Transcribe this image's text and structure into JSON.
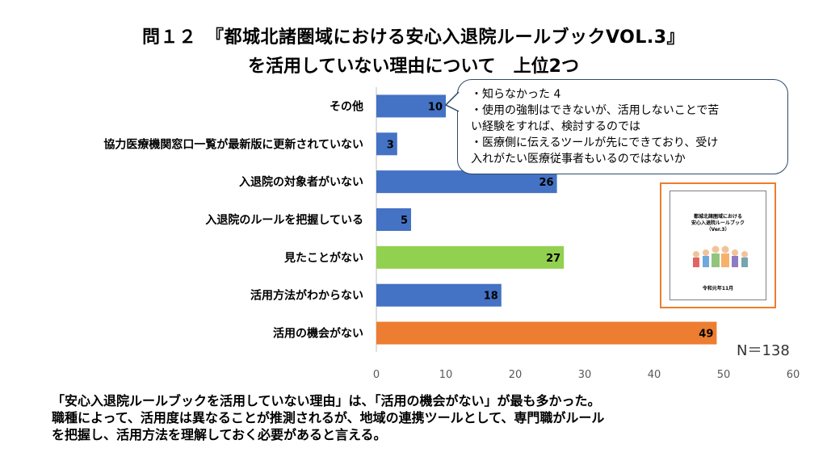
{
  "title": {
    "line1": "問１２　『都城北諸圏域における安心入退院ルールブックVOL.3』",
    "line2": "を活用していない理由について　上位2つ"
  },
  "chart_data": {
    "type": "bar",
    "orientation": "horizontal",
    "categories": [
      "その他",
      "協力医療機関窓口一覧が最新版に更新されていない",
      "入退院の対象者がいない",
      "入退院のルールを把握している",
      "見たことがない",
      "活用方法がわからない",
      "活用の機会がない"
    ],
    "values": [
      10,
      3,
      26,
      5,
      27,
      18,
      49
    ],
    "colors": [
      "#4472c4",
      "#4472c4",
      "#4472c4",
      "#4472c4",
      "#92d050",
      "#4472c4",
      "#ed7d31"
    ],
    "xlim": [
      0,
      60
    ],
    "xticks": [
      "0",
      "10",
      "20",
      "30",
      "40",
      "50",
      "60"
    ],
    "grid": false,
    "legend": "none"
  },
  "callout": {
    "lines": [
      "・知らなかった 4",
      "・使用の強制はできないが、活用しないことで苦",
      "い経験をすれば、検討するのでは",
      "・医療側に伝えるツールが先にできており、受け",
      "入れがたい医療従事者もいるのではないか"
    ]
  },
  "thumbnail": {
    "title_line1": "都城北諸圏域における",
    "title_line2": "安心入退院ルールブック",
    "title_line3": "（Ver.3）",
    "date": "令和元年11月"
  },
  "n_label": "N＝138",
  "footer": {
    "line1": "「安心入退院ルールブックを活用していない理由」は、「活用の機会がない」が最も多かった。",
    "line2": "職種によって、活用度は異なることが推測されるが、地域の連携ツールとして、専門職がルール",
    "line3": "を把握し、活用方法を理解しておく必要があると言える。"
  }
}
